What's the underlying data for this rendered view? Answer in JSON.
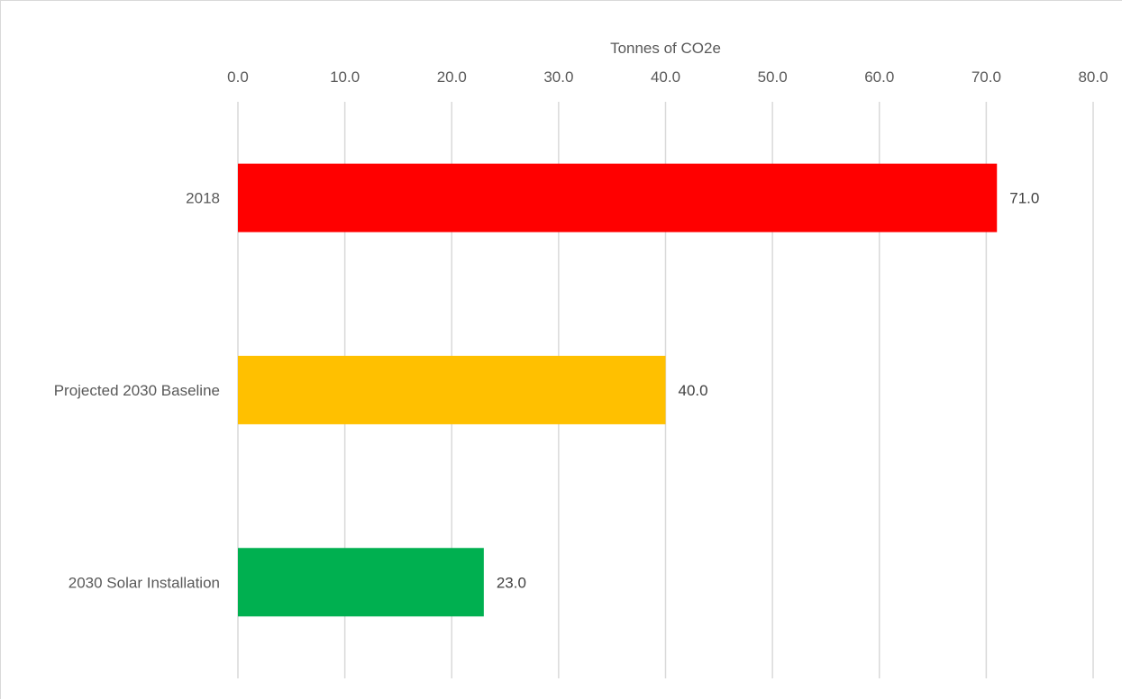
{
  "chart_data": {
    "type": "bar",
    "orientation": "horizontal",
    "xlabel": "Tonnes of CO2e",
    "ylabel": "",
    "xlim": [
      0,
      80
    ],
    "x_ticks": [
      "0.0",
      "10.0",
      "20.0",
      "30.0",
      "40.0",
      "50.0",
      "60.0",
      "70.0",
      "80.0"
    ],
    "x_axis_position": "top",
    "grid": true,
    "legend": "none",
    "categories": [
      "2018",
      "Projected 2030 Baseline",
      "2030 Solar Installation"
    ],
    "values": [
      71.0,
      40.0,
      23.0
    ],
    "data_labels": [
      "71.0",
      "40.0",
      "23.0"
    ],
    "colors": [
      "#ff0000",
      "#ffc000",
      "#00b050"
    ]
  }
}
